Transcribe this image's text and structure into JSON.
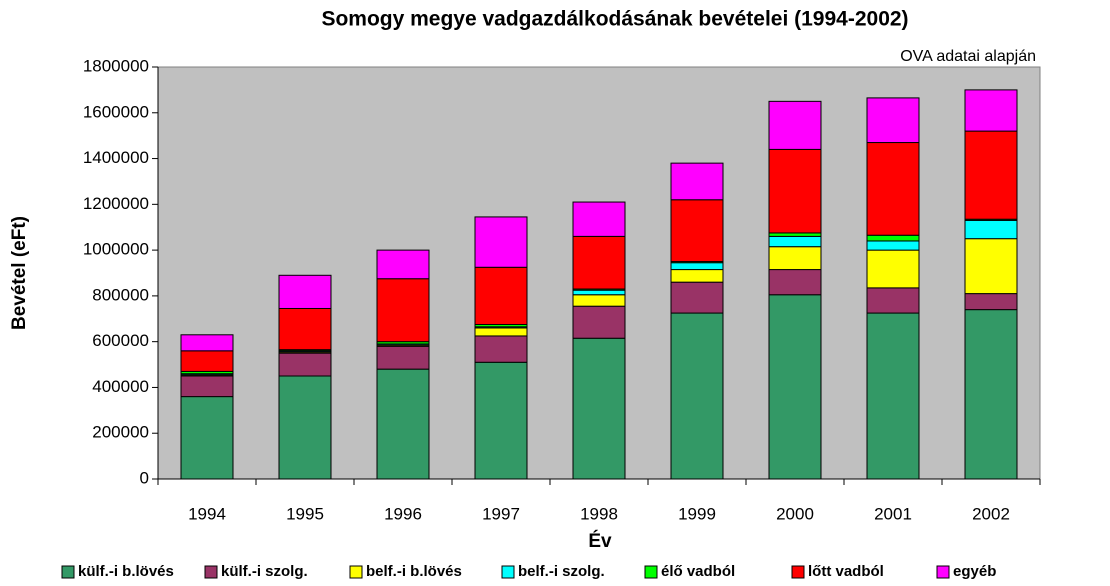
{
  "chart_data": {
    "type": "stacked_bar",
    "title": "Somogy megye vadgazdálkodásának bevételei (1994-2002)",
    "annotation": "OVA adatai alapján",
    "x_label": "Év",
    "y_label": "Bevétel (eFt)",
    "categories": [
      "1994",
      "1995",
      "1996",
      "1997",
      "1998",
      "1999",
      "2000",
      "2001",
      "2002"
    ],
    "series": [
      {
        "name": "külf.-i b.lövés",
        "color": "#339966",
        "values": [
          360000,
          450000,
          480000,
          510000,
          615000,
          725000,
          805000,
          725000,
          740000
        ]
      },
      {
        "name": "külf.-i szolg.",
        "color": "#993366",
        "values": [
          90000,
          100000,
          100000,
          115000,
          140000,
          135000,
          110000,
          110000,
          70000
        ]
      },
      {
        "name": "belf.-i b.lövés",
        "color": "#ffff00",
        "values": [
          5000,
          5000,
          5000,
          35000,
          50000,
          55000,
          100000,
          165000,
          240000
        ]
      },
      {
        "name": "belf.-i szolg.",
        "color": "#00ffff",
        "values": [
          5000,
          5000,
          5000,
          5000,
          20000,
          30000,
          45000,
          40000,
          80000
        ]
      },
      {
        "name": "élő vadból",
        "color": "#00ff00",
        "values": [
          10000,
          5000,
          10000,
          10000,
          5000,
          5000,
          15000,
          25000,
          5000
        ]
      },
      {
        "name": "lőtt vadból",
        "color": "#ff0000",
        "values": [
          90000,
          180000,
          275000,
          250000,
          230000,
          270000,
          365000,
          405000,
          385000
        ]
      },
      {
        "name": "egyéb",
        "color": "#ff00ff",
        "values": [
          70000,
          145000,
          125000,
          220000,
          150000,
          160000,
          210000,
          195000,
          180000
        ]
      }
    ],
    "ylim": [
      0,
      1800000
    ],
    "yticks": [
      0,
      200000,
      400000,
      600000,
      800000,
      1000000,
      1200000,
      1400000,
      1600000,
      1800000
    ],
    "background": "#c0c0c0"
  }
}
